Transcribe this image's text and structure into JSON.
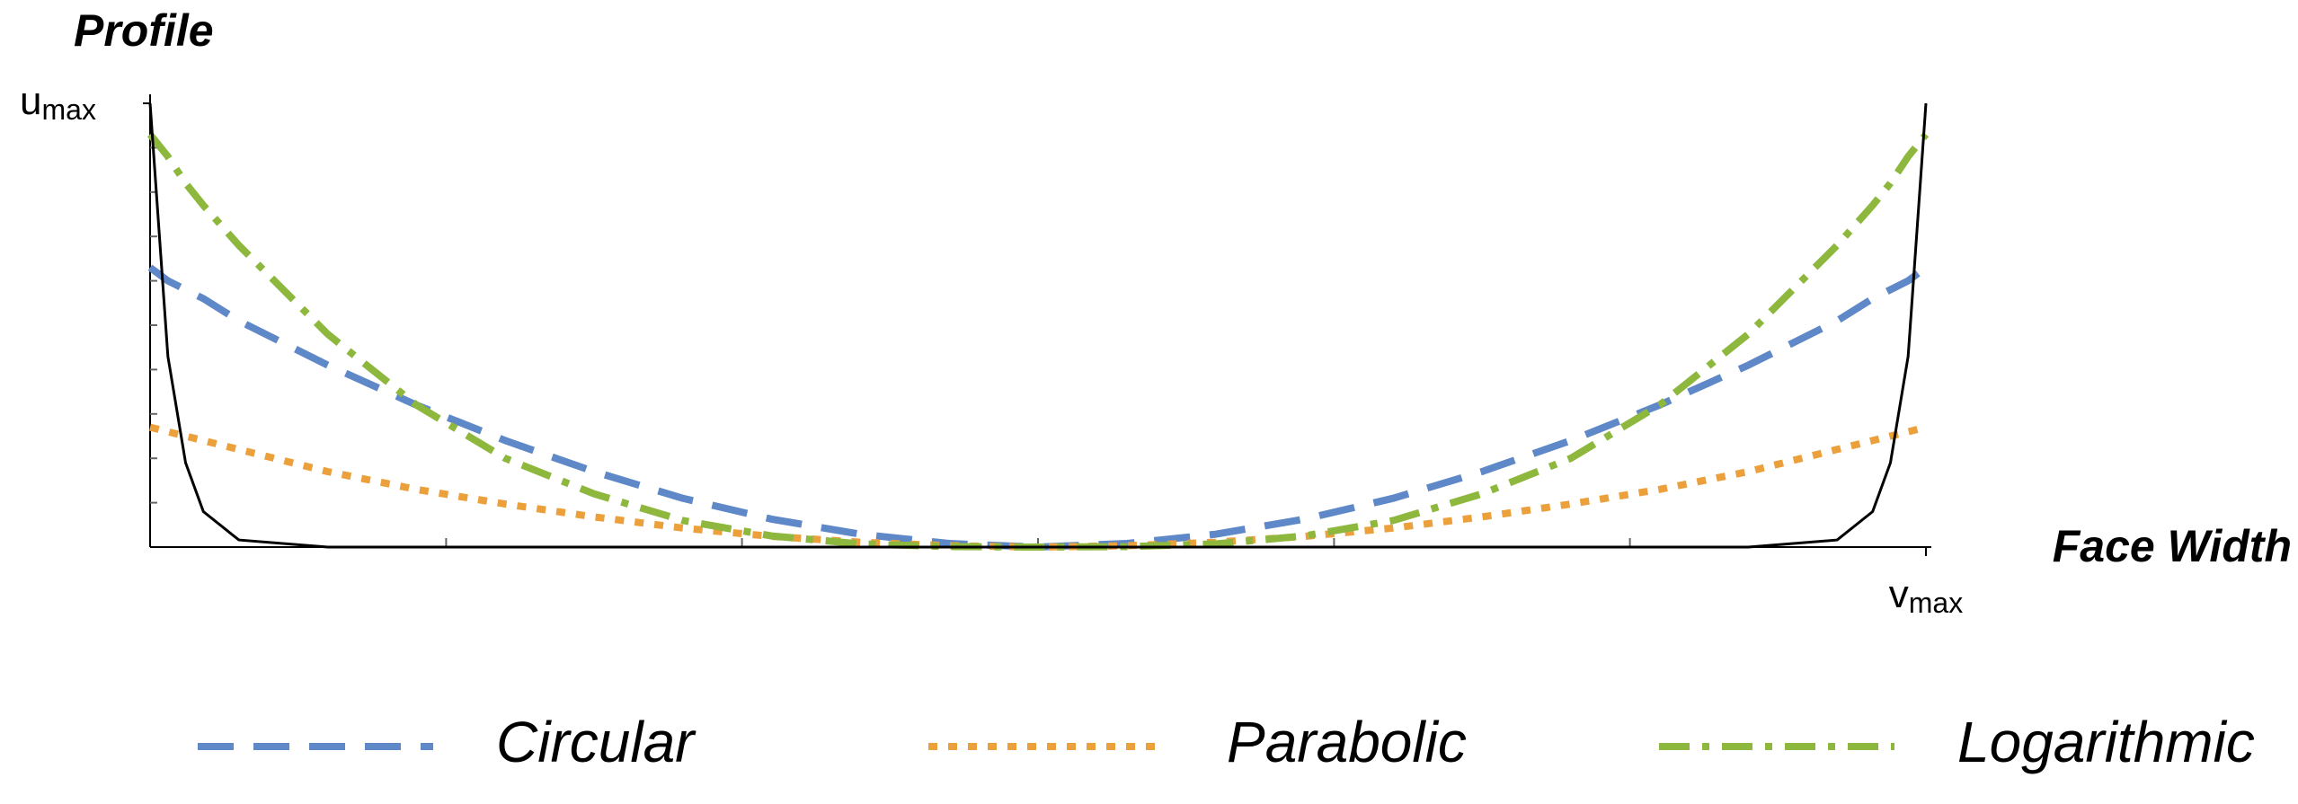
{
  "chart_data": {
    "type": "line",
    "y_label": "Profile",
    "x_label": "Face Width",
    "xlim": [
      0,
      1
    ],
    "ylim": [
      0,
      1
    ],
    "xticks": [
      {
        "value": 1,
        "label": "v",
        "sub": "max"
      }
    ],
    "yticks": [
      {
        "value": 1,
        "label": "u",
        "sub": "max"
      }
    ],
    "x_minor_ticks": [
      0.1667,
      0.3333,
      0.5,
      0.6667,
      0.8333
    ],
    "y_minor_ticks": [
      0.1,
      0.2,
      0.3,
      0.4,
      0.5,
      0.6,
      0.7,
      0.8,
      0.9
    ],
    "legend": "bottom",
    "x": [
      0,
      0.01,
      0.02,
      0.03,
      0.05,
      0.1,
      0.15,
      0.2,
      0.25,
      0.3,
      0.35,
      0.4,
      0.45,
      0.5,
      0.55,
      0.6,
      0.65,
      0.7,
      0.75,
      0.8,
      0.85,
      0.9,
      0.95,
      0.97,
      0.98,
      0.99,
      1
    ],
    "series": [
      {
        "name": "Circular",
        "color": "#5e88c7",
        "dash": "dashed",
        "values": [
          0.63,
          0.6,
          0.58,
          0.56,
          0.51,
          0.41,
          0.32,
          0.24,
          0.17,
          0.11,
          0.063,
          0.029,
          0.008,
          0,
          0.008,
          0.029,
          0.063,
          0.11,
          0.17,
          0.24,
          0.32,
          0.41,
          0.51,
          0.56,
          0.58,
          0.6,
          0.63
        ]
      },
      {
        "name": "Parabolic",
        "color": "#eba03b",
        "dash": "dotted",
        "values": [
          0.27,
          0.26,
          0.25,
          0.24,
          0.22,
          0.17,
          0.13,
          0.097,
          0.068,
          0.043,
          0.024,
          0.011,
          0.003,
          0,
          0.003,
          0.011,
          0.024,
          0.043,
          0.068,
          0.097,
          0.13,
          0.17,
          0.22,
          0.24,
          0.25,
          0.26,
          0.27
        ]
      },
      {
        "name": "Logarithmic",
        "color": "#8db83d",
        "dash": "dashdot",
        "values": [
          0.93,
          0.88,
          0.82,
          0.77,
          0.68,
          0.48,
          0.32,
          0.2,
          0.12,
          0.06,
          0.025,
          0.007,
          0.001,
          0,
          0.001,
          0.007,
          0.025,
          0.06,
          0.12,
          0.2,
          0.32,
          0.48,
          0.68,
          0.77,
          0.82,
          0.88,
          0.93
        ]
      },
      {
        "color": "#000000",
        "dash": "solid",
        "values": [
          1,
          0.43,
          0.19,
          0.08,
          0.016,
          0,
          0,
          0,
          0,
          0,
          0,
          0,
          0,
          0,
          0,
          0,
          0,
          0,
          0,
          0,
          0,
          0,
          0.016,
          0.08,
          0.19,
          0.43,
          1
        ]
      }
    ]
  }
}
